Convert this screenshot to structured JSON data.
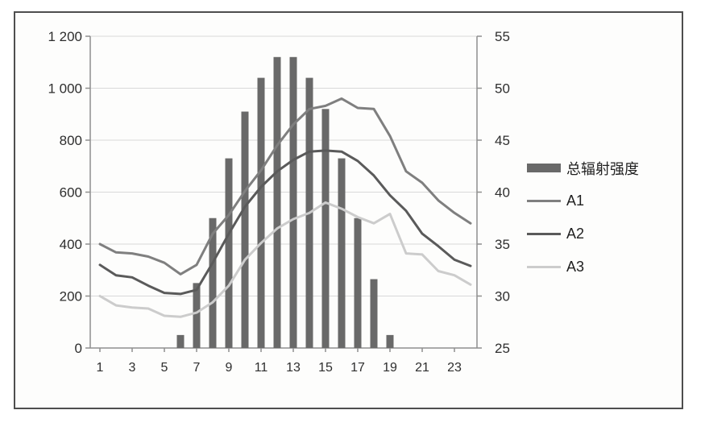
{
  "figure": {
    "background": "#fdfdfc",
    "frame_border_color": "#4e4e4e",
    "gridline_color": "#d9d9d9",
    "axis_line_color": "#8f8f8f",
    "text_color": "#2e2e2e"
  },
  "chart_data": {
    "type": "combo-bar-line",
    "x": [
      1,
      2,
      3,
      4,
      5,
      6,
      7,
      8,
      9,
      10,
      11,
      12,
      13,
      14,
      15,
      16,
      17,
      18,
      19,
      20,
      21,
      22,
      23,
      24
    ],
    "x_axis": {
      "tick_hours": [
        1,
        3,
        5,
        7,
        9,
        11,
        13,
        15,
        17,
        19,
        21,
        23
      ],
      "tick_labels": [
        "1",
        "3",
        "5",
        "7",
        "9",
        "11",
        "13",
        "15",
        "17",
        "19",
        "21",
        "23"
      ]
    },
    "left_axis": {
      "range": [
        0,
        1200
      ],
      "tick_values": [
        0,
        200,
        400,
        600,
        800,
        1000,
        1200
      ],
      "tick_labels": [
        "0",
        "200",
        "400",
        "600",
        "800",
        "1 000",
        "1 200"
      ]
    },
    "right_axis": {
      "range": [
        25,
        55
      ],
      "tick_values": [
        25,
        30,
        35,
        40,
        45,
        50,
        55
      ],
      "tick_labels": [
        "25",
        "30",
        "35",
        "40",
        "45",
        "50",
        "55"
      ]
    },
    "series": [
      {
        "name": "总辐射强度",
        "chart": "bar",
        "axis": "left",
        "color": "#696969",
        "values": [
          null,
          null,
          null,
          null,
          null,
          50,
          250,
          500,
          730,
          910,
          1040,
          1120,
          1120,
          1040,
          920,
          730,
          500,
          265,
          50,
          null,
          null,
          null,
          null,
          null
        ]
      },
      {
        "name": "A1",
        "chart": "line",
        "axis": "right",
        "color": "#7f7f7f",
        "stroke_width": 3,
        "values": [
          35.0,
          34.2,
          34.1,
          33.8,
          33.2,
          32.1,
          33.0,
          36.0,
          37.8,
          40.1,
          42.1,
          44.5,
          46.5,
          48.0,
          48.3,
          49.0,
          48.1,
          48.0,
          45.4,
          42.0,
          40.9,
          39.2,
          38.0,
          37.0
        ]
      },
      {
        "name": "A2",
        "chart": "line",
        "axis": "right",
        "color": "#5a5a5a",
        "stroke_width": 3,
        "values": [
          33.0,
          32.0,
          31.8,
          31.0,
          30.3,
          30.2,
          30.6,
          33.2,
          36.0,
          38.6,
          40.5,
          42.0,
          43.1,
          43.9,
          44.0,
          43.9,
          43.0,
          41.6,
          39.7,
          38.2,
          36.0,
          34.8,
          33.5,
          32.9
        ]
      },
      {
        "name": "A3",
        "chart": "line",
        "axis": "right",
        "color": "#cccccc",
        "stroke_width": 3,
        "values": [
          30.0,
          29.1,
          28.9,
          28.8,
          28.1,
          28.0,
          28.4,
          29.4,
          31.0,
          33.5,
          35.1,
          36.5,
          37.4,
          38.0,
          39.0,
          38.4,
          37.6,
          37.0,
          37.9,
          34.1,
          34.0,
          32.4,
          32.0,
          31.1
        ]
      }
    ],
    "legend": {
      "position": "right",
      "entries": [
        "总辐射强度",
        "A1",
        "A2",
        "A3"
      ]
    },
    "title": "",
    "grid": true
  }
}
